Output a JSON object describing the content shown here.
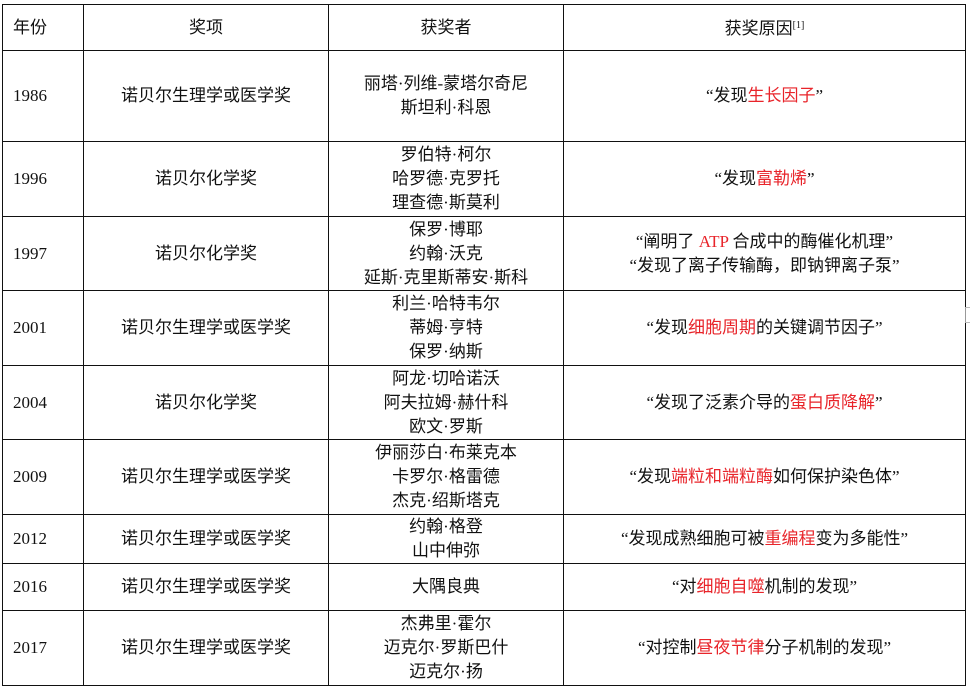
{
  "header": {
    "year": "年份",
    "award": "奖项",
    "winners": "获奖者",
    "reason": "获奖原因",
    "reason_ref": "[1]"
  },
  "accent_color": "#e8242a",
  "rows": [
    {
      "year": "1986",
      "award": "诺贝尔生理学或医学奖",
      "winners": [
        "丽塔·列维-蒙塔尔奇尼",
        "斯坦利·科恩"
      ],
      "reason": [
        [
          {
            "t": "“发现"
          },
          {
            "t": "生长因子",
            "red": true
          },
          {
            "t": "”"
          }
        ]
      ]
    },
    {
      "year": "1996",
      "award": "诺贝尔化学奖",
      "winners": [
        "罗伯特·柯尔",
        "哈罗德·克罗托",
        "理查德·斯莫利"
      ],
      "reason": [
        [
          {
            "t": "“发现"
          },
          {
            "t": "富勒烯",
            "red": true
          },
          {
            "t": "”"
          }
        ]
      ]
    },
    {
      "year": "1997",
      "award": "诺贝尔化学奖",
      "winners": [
        "保罗·博耶",
        "约翰·沃克",
        "延斯·克里斯蒂安·斯科"
      ],
      "reason": [
        [
          {
            "t": "“阐明了 "
          },
          {
            "t": "ATP",
            "red": true
          },
          {
            "t": " 合成中的酶催化机理”"
          }
        ],
        [
          {
            "t": "“发现了离子传输酶，即钠钾离子泵”"
          }
        ]
      ]
    },
    {
      "year": "2001",
      "award": "诺贝尔生理学或医学奖",
      "winners": [
        "利兰·哈特韦尔",
        "蒂姆·亨特",
        "保罗·纳斯"
      ],
      "reason": [
        [
          {
            "t": "“发现"
          },
          {
            "t": "细胞周期",
            "red": true
          },
          {
            "t": "的关键调节因子”"
          }
        ]
      ]
    },
    {
      "year": "2004",
      "award": "诺贝尔化学奖",
      "winners": [
        "阿龙·切哈诺沃",
        "阿夫拉姆·赫什科",
        "欧文·罗斯"
      ],
      "reason": [
        [
          {
            "t": "“发现了泛素介导的"
          },
          {
            "t": "蛋白质降解",
            "red": true
          },
          {
            "t": "”"
          }
        ]
      ]
    },
    {
      "year": "2009",
      "award": "诺贝尔生理学或医学奖",
      "winners": [
        "伊丽莎白·布莱克本",
        "卡罗尔·格雷德",
        "杰克·绍斯塔克"
      ],
      "reason": [
        [
          {
            "t": "“发现"
          },
          {
            "t": "端粒和端粒酶",
            "red": true
          },
          {
            "t": "如何保护染色体”"
          }
        ]
      ]
    },
    {
      "year": "2012",
      "award": "诺贝尔生理学或医学奖",
      "winners": [
        "约翰·格登",
        "山中伸弥"
      ],
      "reason": [
        [
          {
            "t": "“发现成熟细胞可被"
          },
          {
            "t": "重编程",
            "red": true
          },
          {
            "t": "变为多能性”"
          }
        ]
      ]
    },
    {
      "year": "2016",
      "award": "诺贝尔生理学或医学奖",
      "winners": [
        "大隅良典"
      ],
      "reason": [
        [
          {
            "t": "“对"
          },
          {
            "t": "细胞自噬",
            "red": true
          },
          {
            "t": "机制的发现”"
          }
        ]
      ]
    },
    {
      "year": "2017",
      "award": "诺贝尔生理学或医学奖",
      "winners": [
        "杰弗里·霍尔",
        "迈克尔·罗斯巴什",
        "迈克尔·扬"
      ],
      "reason": [
        [
          {
            "t": "“对控制"
          },
          {
            "t": "昼夜节律",
            "red": true
          },
          {
            "t": "分子机制的发现”"
          }
        ]
      ]
    }
  ]
}
